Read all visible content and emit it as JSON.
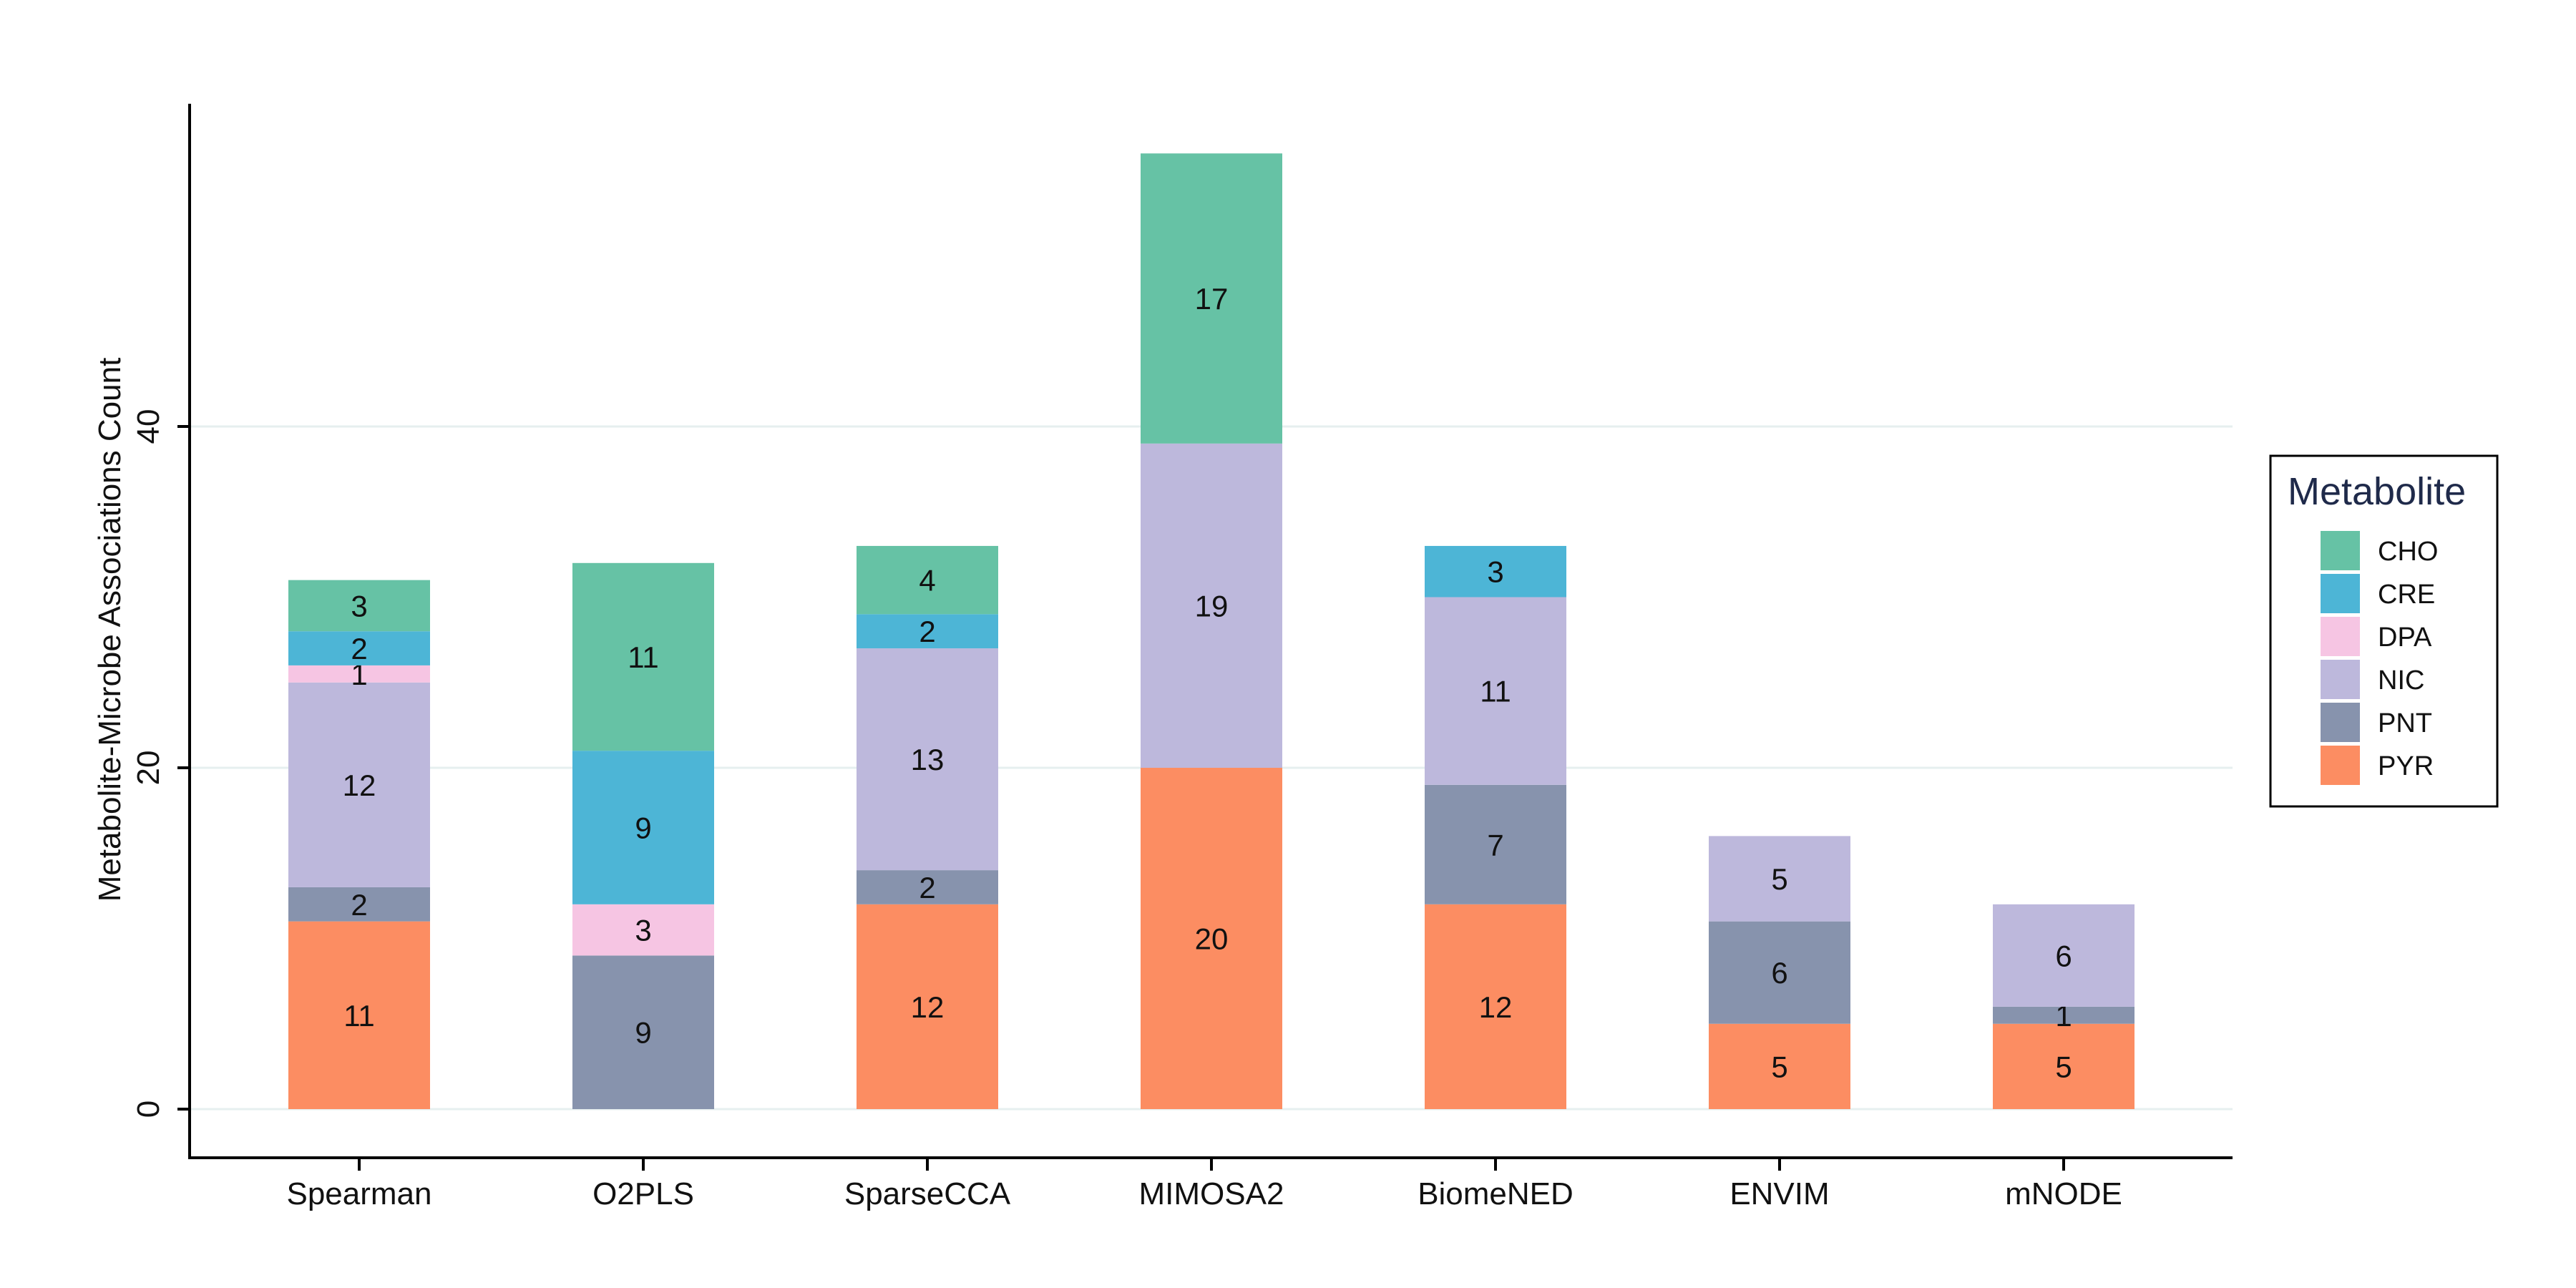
{
  "chart_data": {
    "type": "bar",
    "stacked": true,
    "title": "",
    "xlabel": "",
    "ylabel": "Metabolite-Microbe Associations Count",
    "ylim": [
      0,
      58
    ],
    "yticks": [
      0,
      20,
      40
    ],
    "grid": true,
    "legend_title": "Metabolite",
    "legend_position": "right",
    "categories": [
      "Spearman",
      "O2PLS",
      "SparseCCA",
      "MIMOSA2",
      "BiomeNED",
      "ENVIM",
      "mNODE"
    ],
    "series": [
      {
        "name": "PYR",
        "color": "#fc8d62",
        "values": [
          11,
          0,
          12,
          20,
          12,
          5,
          5
        ]
      },
      {
        "name": "PNT",
        "color": "#8793ad",
        "values": [
          2,
          9,
          2,
          0,
          7,
          6,
          1
        ]
      },
      {
        "name": "NIC",
        "color": "#bdb8dc",
        "values": [
          12,
          0,
          13,
          19,
          11,
          5,
          6
        ]
      },
      {
        "name": "DPA",
        "color": "#f6c5e3",
        "values": [
          1,
          3,
          0,
          0,
          0,
          0,
          0
        ]
      },
      {
        "name": "CRE",
        "color": "#4db5d6",
        "values": [
          2,
          9,
          2,
          0,
          3,
          0,
          0
        ]
      },
      {
        "name": "CHO",
        "color": "#66c2a5",
        "values": [
          3,
          11,
          4,
          17,
          0,
          0,
          0
        ]
      }
    ],
    "legend_order": [
      "CHO",
      "CRE",
      "DPA",
      "NIC",
      "PNT",
      "PYR"
    ]
  }
}
